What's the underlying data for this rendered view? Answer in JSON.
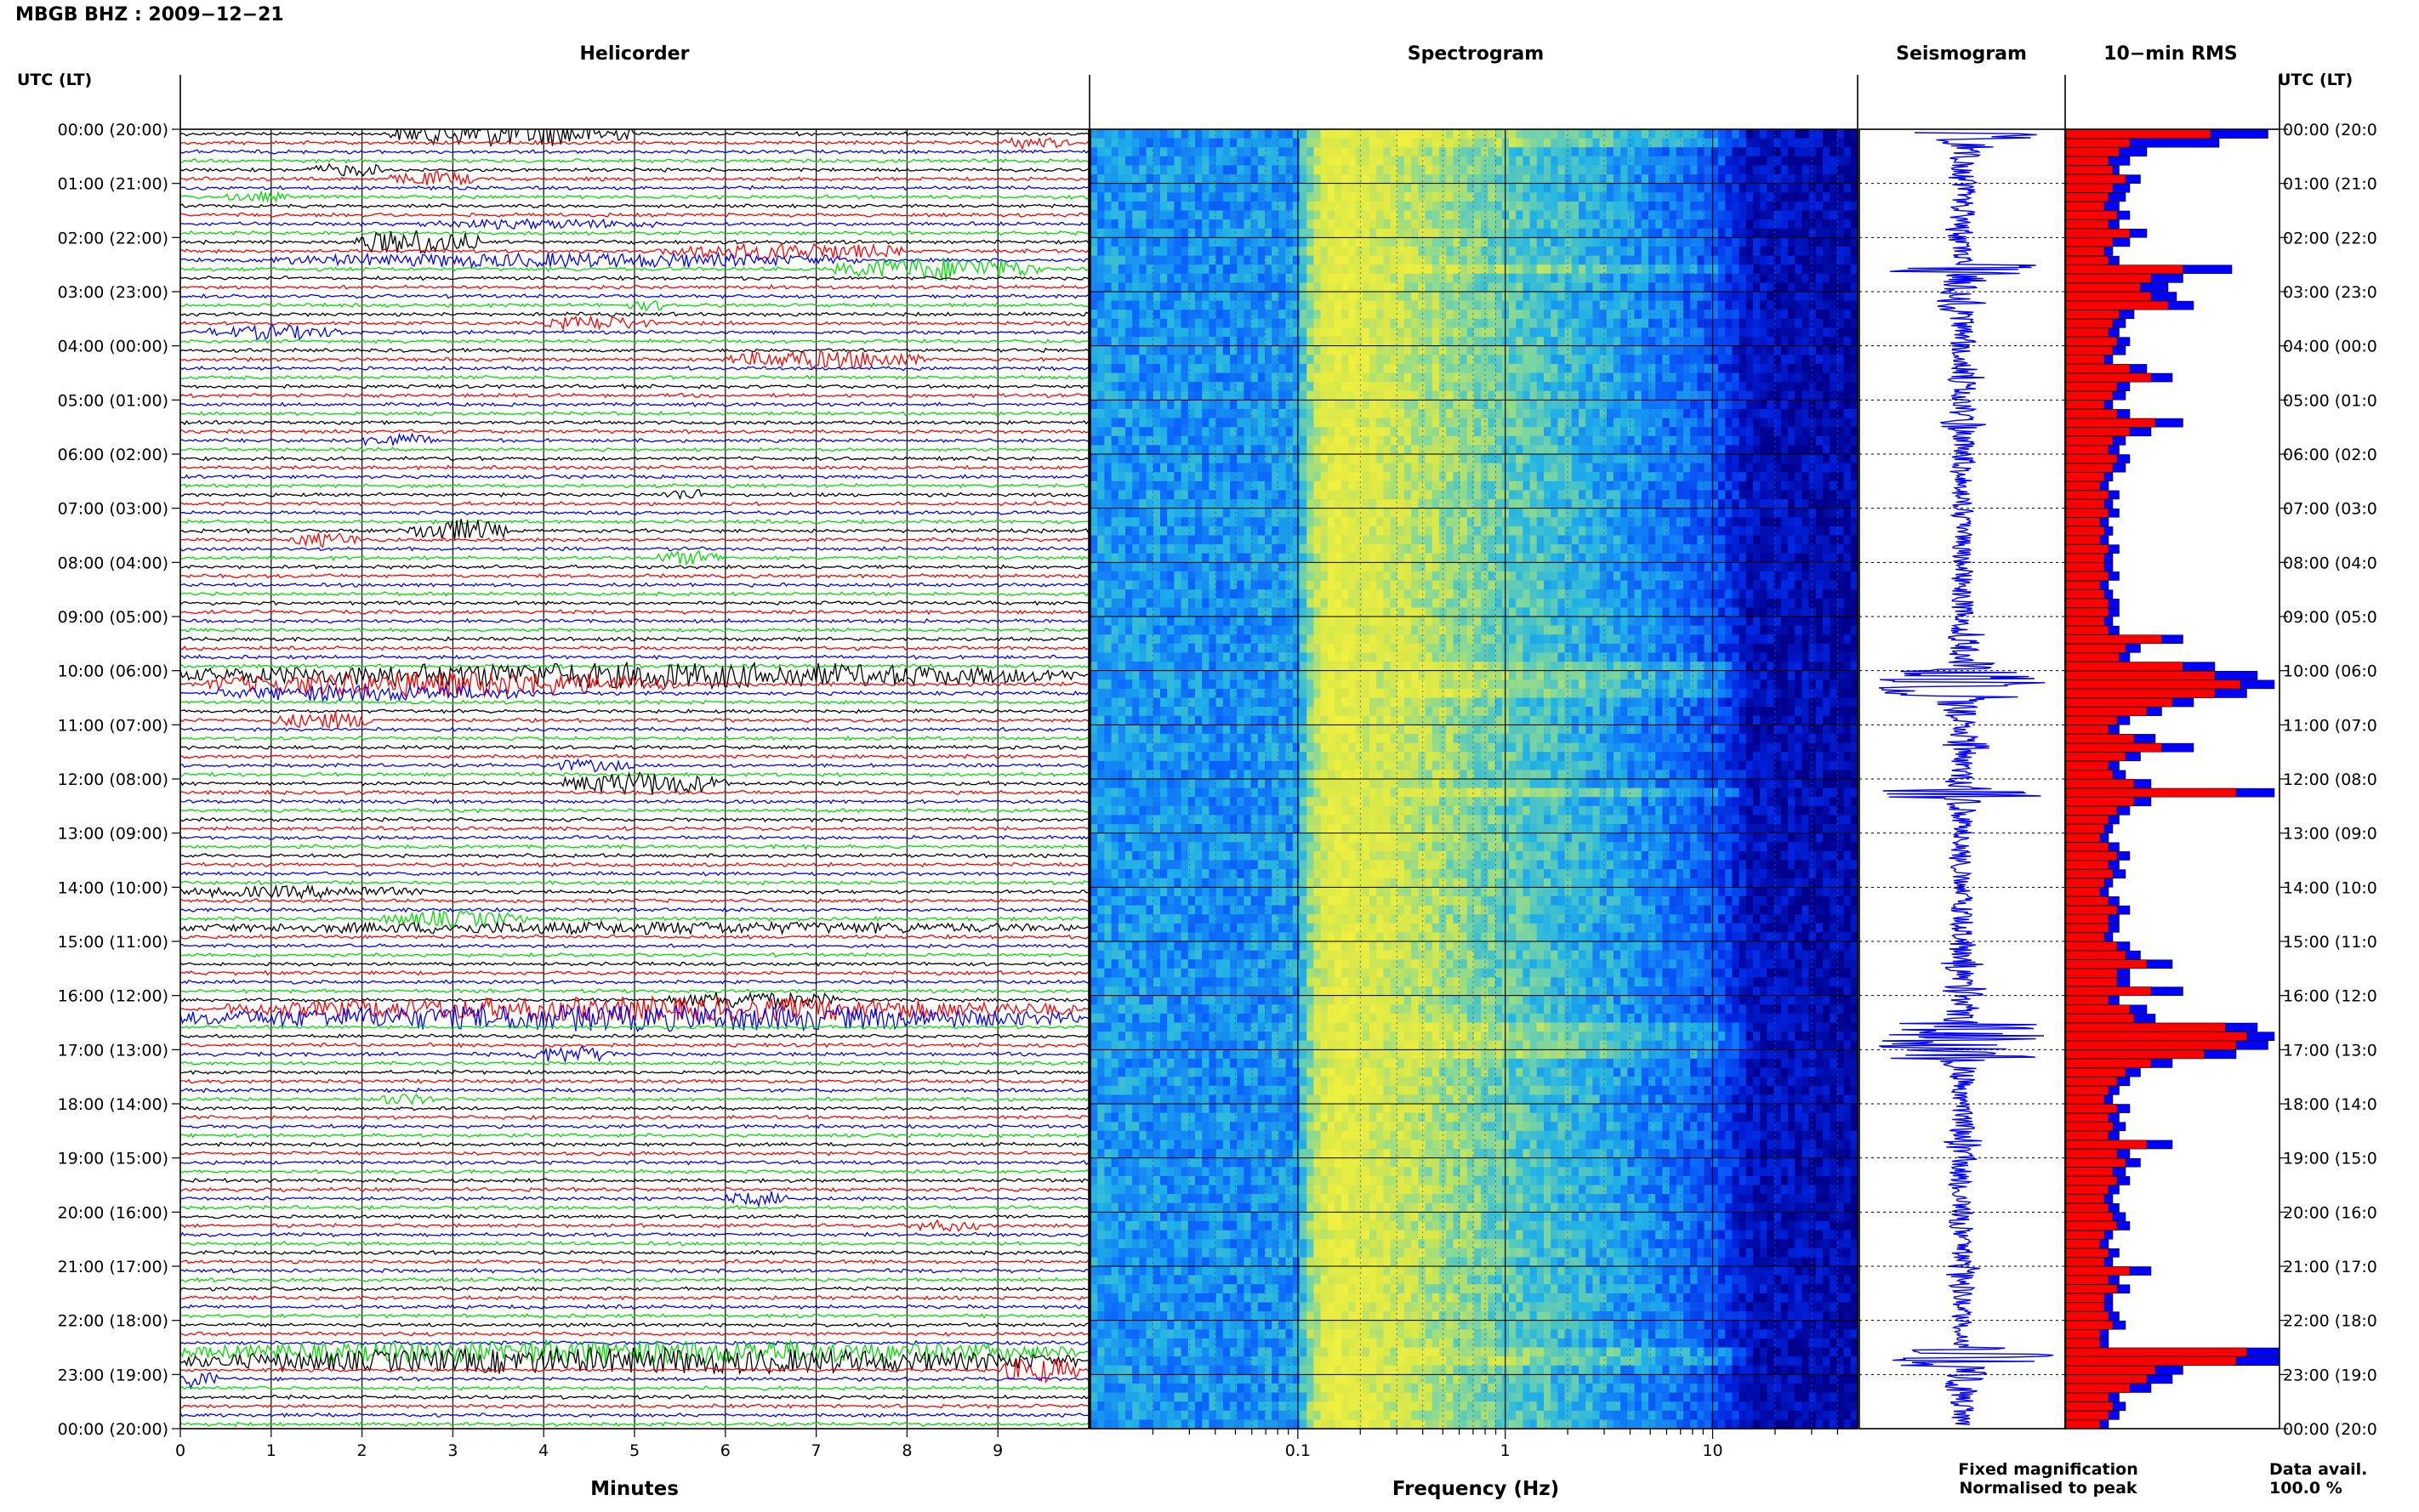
{
  "title": "MBGB BHZ : 2009−12−21",
  "panels": {
    "helicorder": "Helicorder",
    "spectrogram": "Spectrogram",
    "seismogram": "Seismogram",
    "rms": "10−min RMS"
  },
  "time_axis_label": "UTC (LT)",
  "left_time_labels": [
    "00:00 (20:00)",
    "01:00 (21:00)",
    "02:00 (22:00)",
    "03:00 (23:00)",
    "04:00 (00:00)",
    "05:00 (01:00)",
    "06:00 (02:00)",
    "07:00 (03:00)",
    "08:00 (04:00)",
    "09:00 (05:00)",
    "10:00 (06:00)",
    "11:00 (07:00)",
    "12:00 (08:00)",
    "13:00 (09:00)",
    "14:00 (10:00)",
    "15:00 (11:00)",
    "16:00 (12:00)",
    "17:00 (13:00)",
    "18:00 (14:00)",
    "19:00 (15:00)",
    "20:00 (16:00)",
    "21:00 (17:00)",
    "22:00 (18:00)",
    "23:00 (19:00)",
    "00:00 (20:00)"
  ],
  "right_time_labels": [
    "00:00 (20:0",
    "01:00 (21:0",
    "02:00 (22:0",
    "03:00 (23:0",
    "04:00 (00:0",
    "05:00 (01:0",
    "06:00 (02:0",
    "07:00 (03:0",
    "08:00 (04:0",
    "09:00 (05:0",
    "10:00 (06:0",
    "11:00 (07:0",
    "12:00 (08:0",
    "13:00 (09:0",
    "14:00 (10:0",
    "15:00 (11:0",
    "16:00 (12:0",
    "17:00 (13:0",
    "18:00 (14:0",
    "19:00 (15:0",
    "20:00 (16:0",
    "21:00 (17:0",
    "22:00 (18:0",
    "23:00 (19:0",
    "00:00 (20:0"
  ],
  "legend": {
    "fixed": "Fixed magnification",
    "normalised": "Normalised to peak",
    "fixed_color": "#0000ff",
    "normalised_color": "#ff0000"
  },
  "data_avail": {
    "label": "Data avail.",
    "value": "100.0 %"
  },
  "trace_colors": [
    "#000000",
    "#ff0000",
    "#0000ff",
    "#00dd00"
  ],
  "chart_data": [
    {
      "type": "line",
      "title": "Helicorder",
      "xlabel": "Minutes",
      "xlim": [
        0,
        10
      ],
      "x_ticks": [
        "0",
        "1",
        "2",
        "3",
        "4",
        "5",
        "6",
        "7",
        "8",
        "9"
      ],
      "rows": 144,
      "row_minutes": 10,
      "grid": true,
      "events": [
        {
          "row": 0,
          "start_min": 2.3,
          "end_min": 5.0,
          "level": 1.0
        },
        {
          "row": 1,
          "start_min": 9.0,
          "end_min": 9.8,
          "level": 0.4
        },
        {
          "row": 4,
          "start_min": 1.4,
          "end_min": 2.3,
          "level": 0.4
        },
        {
          "row": 5,
          "start_min": 2.3,
          "end_min": 3.3,
          "level": 0.5
        },
        {
          "row": 7,
          "start_min": 0.5,
          "end_min": 1.2,
          "level": 0.3
        },
        {
          "row": 10,
          "start_min": 2.6,
          "end_min": 5.3,
          "level": 0.3
        },
        {
          "row": 12,
          "start_min": 1.9,
          "end_min": 3.3,
          "level": 1.0
        },
        {
          "row": 13,
          "start_min": 5.3,
          "end_min": 8.0,
          "level": 0.6
        },
        {
          "row": 14,
          "start_min": 1.0,
          "end_min": 7.5,
          "level": 0.5
        },
        {
          "row": 15,
          "start_min": 7.2,
          "end_min": 9.5,
          "level": 0.9
        },
        {
          "row": 19,
          "start_min": 4.9,
          "end_min": 5.5,
          "level": 0.3
        },
        {
          "row": 21,
          "start_min": 4.0,
          "end_min": 5.2,
          "level": 0.5
        },
        {
          "row": 22,
          "start_min": 0.3,
          "end_min": 1.8,
          "level": 0.5
        },
        {
          "row": 25,
          "start_min": 6.0,
          "end_min": 8.2,
          "level": 0.7
        },
        {
          "row": 34,
          "start_min": 2.0,
          "end_min": 2.8,
          "level": 0.5
        },
        {
          "row": 40,
          "start_min": 5.3,
          "end_min": 5.8,
          "level": 0.4
        },
        {
          "row": 44,
          "start_min": 2.5,
          "end_min": 3.6,
          "level": 0.9
        },
        {
          "row": 45,
          "start_min": 1.2,
          "end_min": 2.0,
          "level": 0.5
        },
        {
          "row": 47,
          "start_min": 5.2,
          "end_min": 6.0,
          "level": 0.5
        },
        {
          "row": 60,
          "start_min": 0.0,
          "end_min": 9.9,
          "level": 1.0
        },
        {
          "row": 61,
          "start_min": 0.3,
          "end_min": 5.5,
          "level": 1.0
        },
        {
          "row": 62,
          "start_min": 0.4,
          "end_min": 4.0,
          "level": 0.6
        },
        {
          "row": 65,
          "start_min": 1.0,
          "end_min": 2.2,
          "level": 0.6
        },
        {
          "row": 70,
          "start_min": 4.0,
          "end_min": 5.0,
          "level": 0.4
        },
        {
          "row": 72,
          "start_min": 4.2,
          "end_min": 6.0,
          "level": 0.9
        },
        {
          "row": 84,
          "start_min": 0.0,
          "end_min": 2.7,
          "level": 0.4
        },
        {
          "row": 87,
          "start_min": 2.2,
          "end_min": 3.8,
          "level": 0.6
        },
        {
          "row": 88,
          "start_min": 0.0,
          "end_min": 9.9,
          "level": 0.4
        },
        {
          "row": 96,
          "start_min": 5.3,
          "end_min": 7.3,
          "level": 0.6
        },
        {
          "row": 97,
          "start_min": 0.5,
          "end_min": 9.9,
          "level": 0.9
        },
        {
          "row": 98,
          "start_min": 0.0,
          "end_min": 9.9,
          "level": 1.0
        },
        {
          "row": 102,
          "start_min": 3.8,
          "end_min": 4.8,
          "level": 0.6
        },
        {
          "row": 107,
          "start_min": 2.2,
          "end_min": 2.8,
          "level": 0.4
        },
        {
          "row": 118,
          "start_min": 6.0,
          "end_min": 6.7,
          "level": 0.5
        },
        {
          "row": 121,
          "start_min": 8.0,
          "end_min": 8.8,
          "level": 0.4
        },
        {
          "row": 135,
          "start_min": 0.0,
          "end_min": 9.9,
          "level": 0.9
        },
        {
          "row": 136,
          "start_min": 0.0,
          "end_min": 9.9,
          "level": 1.0
        },
        {
          "row": 137,
          "start_min": 9.0,
          "end_min": 9.9,
          "level": 1.0
        },
        {
          "row": 138,
          "start_min": 0.0,
          "end_min": 0.4,
          "level": 0.7
        }
      ]
    },
    {
      "type": "heatmap",
      "title": "Spectrogram",
      "xlabel": "Frequency (Hz)",
      "x_scale": "log",
      "xlim": [
        0.01,
        50
      ],
      "x_tick_labels": [
        "0.1",
        "1",
        "10"
      ],
      "x_tick_values": [
        0.1,
        1,
        10
      ],
      "colormap": [
        "#00008c",
        "#0022dd",
        "#0a66ff",
        "#22b4e6",
        "#7dd6a0",
        "#d8e84a",
        "#f0f040"
      ],
      "band_profile": {
        "freq_hz": [
          0.01,
          0.05,
          0.1,
          0.12,
          0.15,
          0.25,
          0.6,
          1.0,
          3.0,
          10.0,
          15.0,
          50.0
        ],
        "level": [
          0.45,
          0.42,
          0.45,
          0.78,
          0.93,
          0.85,
          0.7,
          0.62,
          0.48,
          0.3,
          0.1,
          0.05
        ]
      }
    },
    {
      "type": "line",
      "title": "Seismogram",
      "legend": [
        "Fixed magnification"
      ]
    },
    {
      "type": "bar",
      "title": "10−min RMS",
      "series": [
        {
          "name": "Fixed magnification",
          "values": [
            0.95,
            0.72,
            0.38,
            0.3,
            0.25,
            0.35,
            0.3,
            0.28,
            0.25,
            0.3,
            0.25,
            0.38,
            0.3,
            0.22,
            0.25,
            0.78,
            0.55,
            0.48,
            0.52,
            0.6,
            0.32,
            0.28,
            0.25,
            0.3,
            0.28,
            0.22,
            0.38,
            0.5,
            0.3,
            0.28,
            0.22,
            0.3,
            0.55,
            0.4,
            0.28,
            0.25,
            0.3,
            0.28,
            0.22,
            0.2,
            0.25,
            0.22,
            0.25,
            0.2,
            0.22,
            0.2,
            0.25,
            0.22,
            0.22,
            0.25,
            0.2,
            0.22,
            0.25,
            0.25,
            0.22,
            0.25,
            0.55,
            0.35,
            0.3,
            0.7,
            0.9,
            0.98,
            0.85,
            0.6,
            0.45,
            0.3,
            0.25,
            0.42,
            0.6,
            0.35,
            0.25,
            0.28,
            0.4,
            0.98,
            0.4,
            0.3,
            0.25,
            0.22,
            0.2,
            0.25,
            0.3,
            0.25,
            0.28,
            0.22,
            0.2,
            0.25,
            0.3,
            0.25,
            0.25,
            0.22,
            0.3,
            0.35,
            0.5,
            0.3,
            0.3,
            0.55,
            0.25,
            0.38,
            0.42,
            0.9,
            0.98,
            0.95,
            0.8,
            0.5,
            0.35,
            0.3,
            0.25,
            0.22,
            0.3,
            0.25,
            0.28,
            0.25,
            0.5,
            0.3,
            0.35,
            0.28,
            0.3,
            0.25,
            0.22,
            0.25,
            0.28,
            0.3,
            0.22,
            0.2,
            0.25,
            0.22,
            0.4,
            0.25,
            0.3,
            0.22,
            0.22,
            0.25,
            0.28,
            0.2,
            0.2,
            1.0,
            1.0,
            0.55,
            0.5,
            0.4,
            0.25,
            0.28,
            0.25,
            0.2
          ]
        },
        {
          "name": "Normalised to peak",
          "values": [
            0.68,
            0.3,
            0.25,
            0.2,
            0.22,
            0.28,
            0.22,
            0.2,
            0.18,
            0.24,
            0.2,
            0.3,
            0.22,
            0.18,
            0.2,
            0.55,
            0.4,
            0.35,
            0.4,
            0.48,
            0.25,
            0.22,
            0.2,
            0.24,
            0.22,
            0.18,
            0.3,
            0.4,
            0.24,
            0.22,
            0.18,
            0.24,
            0.42,
            0.3,
            0.22,
            0.2,
            0.24,
            0.22,
            0.18,
            0.16,
            0.2,
            0.18,
            0.2,
            0.16,
            0.18,
            0.16,
            0.2,
            0.18,
            0.18,
            0.2,
            0.16,
            0.18,
            0.2,
            0.2,
            0.18,
            0.2,
            0.45,
            0.28,
            0.25,
            0.55,
            0.7,
            0.82,
            0.7,
            0.5,
            0.38,
            0.24,
            0.2,
            0.32,
            0.45,
            0.28,
            0.2,
            0.22,
            0.32,
            0.8,
            0.32,
            0.24,
            0.2,
            0.18,
            0.16,
            0.2,
            0.24,
            0.2,
            0.22,
            0.18,
            0.16,
            0.2,
            0.24,
            0.2,
            0.2,
            0.18,
            0.24,
            0.28,
            0.38,
            0.24,
            0.24,
            0.4,
            0.2,
            0.3,
            0.32,
            0.75,
            0.85,
            0.8,
            0.65,
            0.4,
            0.28,
            0.24,
            0.2,
            0.18,
            0.24,
            0.2,
            0.22,
            0.2,
            0.38,
            0.24,
            0.28,
            0.22,
            0.24,
            0.2,
            0.18,
            0.2,
            0.22,
            0.24,
            0.18,
            0.16,
            0.2,
            0.18,
            0.3,
            0.2,
            0.24,
            0.18,
            0.18,
            0.2,
            0.22,
            0.16,
            0.16,
            0.85,
            0.8,
            0.42,
            0.38,
            0.3,
            0.2,
            0.22,
            0.2,
            0.16
          ]
        }
      ]
    }
  ]
}
